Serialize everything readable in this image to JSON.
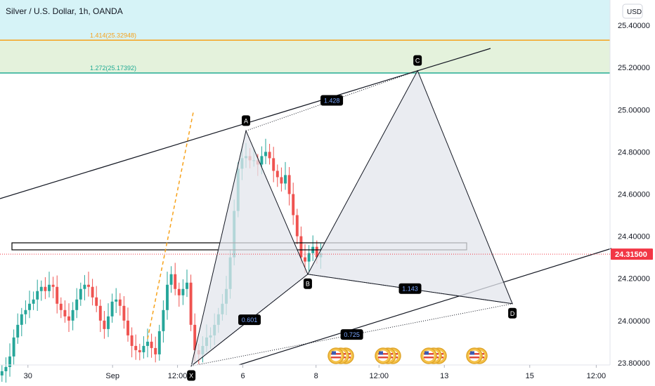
{
  "header": {
    "title": "Silver / U.S. Dollar, 1h, OANDA"
  },
  "currency_button": "USD",
  "price_tag": {
    "value": "24.31500",
    "color": "#f23645"
  },
  "colors": {
    "up": "#26a69a",
    "down": "#ef5350",
    "zone_upper": "#d6f3f7",
    "zone_lower": "#e4f2dc",
    "fib_orange": "#f7a21b",
    "fib_teal": "#22ab94",
    "pattern_fill": "#e3e6ec",
    "label_bg": "#000000"
  },
  "fib_levels": [
    {
      "label": "1.414(25.32948)",
      "price": 25.32948,
      "color": "#f7a21b"
    },
    {
      "label": "1.272(25.17392)",
      "price": 25.17392,
      "color": "#22ab94"
    }
  ],
  "pattern": {
    "points": [
      {
        "label": "X",
        "time": 48.6,
        "price": 23.785
      },
      {
        "label": "A",
        "time": 62.5,
        "price": 24.9
      },
      {
        "label": "B",
        "time": 78.2,
        "price": 24.22
      },
      {
        "label": "C",
        "time": 106.1,
        "price": 25.185
      },
      {
        "label": "D",
        "time": 130.2,
        "price": 24.08
      }
    ],
    "ratios": [
      "0.601",
      "1.428",
      "1.143",
      "0.725"
    ]
  },
  "events_icon": "us-flag-icon",
  "chart_data": {
    "type": "candlestick",
    "title": "Silver / U.S. Dollar, 1h, OANDA",
    "y_axis": {
      "ticks": [
        "23.80000",
        "24.00000",
        "24.20000",
        "24.40000",
        "24.60000",
        "24.80000",
        "25.00000",
        "25.20000",
        "25.40000"
      ],
      "range": [
        23.69,
        25.52
      ],
      "position": "right"
    },
    "x_axis": {
      "ticks": [
        {
          "label": "30",
          "time": 7.1
        },
        {
          "label": "Sep",
          "time": 28.6
        },
        {
          "label": "12:00",
          "time": 45.1
        },
        {
          "label": "6",
          "time": 61.7
        },
        {
          "label": "8",
          "time": 80.3
        },
        {
          "label": "12:00",
          "time": 96.3
        },
        {
          "label": "13",
          "time": 112.9
        },
        {
          "label": "15",
          "time": 134.6
        },
        {
          "label": "12:00",
          "time": 151.5
        }
      ],
      "range": [
        0,
        155
      ]
    },
    "series": [
      {
        "name": "XAG/USD 1h",
        "close": [
          23.76,
          23.78,
          23.83,
          23.92,
          23.98,
          24.03,
          24.05,
          24.08,
          24.1,
          24.14,
          24.16,
          24.14,
          24.17,
          24.16,
          24.08,
          24.05,
          24.02,
          24.0,
          24.05,
          24.1,
          24.15,
          24.17,
          24.16,
          24.11,
          24.07,
          24.0,
          23.96,
          24.02,
          24.09,
          24.1,
          24.07,
          24.0,
          23.93,
          23.88,
          23.86,
          23.85,
          23.88,
          23.9,
          23.87,
          23.84,
          23.95,
          24.05,
          24.17,
          24.22,
          24.15,
          24.12,
          24.15,
          24.18,
          23.98,
          23.86,
          23.84,
          23.88,
          23.92,
          23.93,
          23.98,
          24.03,
          24.08,
          24.15,
          24.3,
          24.52,
          24.72,
          24.77,
          24.78,
          24.76,
          24.76,
          24.74,
          24.78,
          24.8,
          24.77,
          24.71,
          24.68,
          24.65,
          24.69,
          24.6,
          24.5,
          24.4,
          24.3,
          24.28,
          24.32,
          24.35,
          24.3,
          24.32
        ]
      }
    ],
    "annotations": [
      "harmonic pattern X-A-B-C-D",
      "0.601",
      "1.428",
      "1.143",
      "0.725",
      "1.414(25.32948)",
      "1.272(25.17392)"
    ]
  }
}
